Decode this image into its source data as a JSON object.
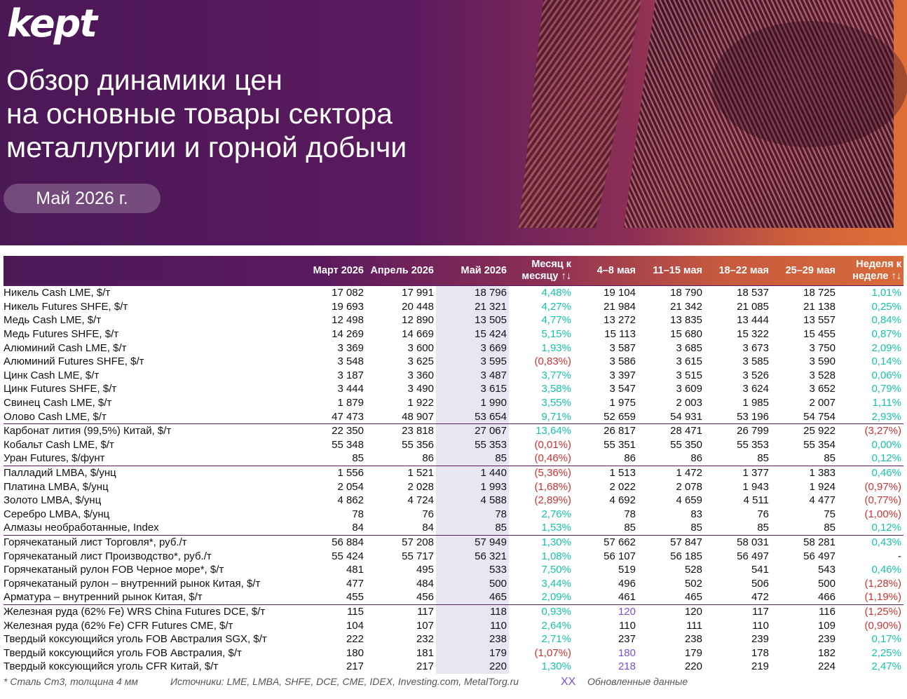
{
  "header": {
    "logo": "kept",
    "title_lines": [
      "Обзор динамики цен",
      "на основные товары сектора",
      "металлургии и горной добычи"
    ],
    "date": "Май 2026 г."
  },
  "table": {
    "columns": [
      "",
      "Март 2026",
      "Апрель 2026",
      "Май 2026",
      "Месяц к месяцу ↑↓",
      "4–8 мая",
      "11–15 мая",
      "18–22 мая",
      "25–29 мая",
      "Неделя к неделе ↑↓"
    ],
    "rows": [
      {
        "name": "Никель Cash LME, $/т",
        "mar": "17 082",
        "apr": "17 991",
        "may": "18 796",
        "mom": "4,48%",
        "w1": "19 104",
        "w2": "18 790",
        "w3": "18 537",
        "w4": "18 725",
        "wow": "1,01%",
        "group": 1
      },
      {
        "name": "Никель Futures SHFE, $/т",
        "mar": "19 693",
        "apr": "20 448",
        "may": "21 321",
        "mom": "4,27%",
        "w1": "21 984",
        "w2": "21 342",
        "w3": "21 085",
        "w4": "21 138",
        "wow": "0,25%"
      },
      {
        "name": "Медь Cash LME, $/т",
        "mar": "12 498",
        "apr": "12 890",
        "may": "13 505",
        "mom": "4,77%",
        "w1": "13 272",
        "w2": "13 835",
        "w3": "13 444",
        "w4": "13 557",
        "wow": "0,84%"
      },
      {
        "name": "Медь Futures SHFE, $/т",
        "mar": "14 269",
        "apr": "14 669",
        "may": "15 424",
        "mom": "5,15%",
        "w1": "15 113",
        "w2": "15 680",
        "w3": "15 322",
        "w4": "15 455",
        "wow": "0,87%"
      },
      {
        "name": "Алюминий Cash LME, $/т",
        "mar": "3 369",
        "apr": "3 600",
        "may": "3 669",
        "mom": "1,93%",
        "w1": "3 587",
        "w2": "3 685",
        "w3": "3 673",
        "w4": "3 750",
        "wow": "2,09%"
      },
      {
        "name": "Алюминий Futures SHFE, $/т",
        "mar": "3 548",
        "apr": "3 625",
        "may": "3 595",
        "mom": "(0,83%)",
        "w1": "3 586",
        "w2": "3 615",
        "w3": "3 585",
        "w4": "3 590",
        "wow": "0,14%"
      },
      {
        "name": "Цинк Cash LME, $/т",
        "mar": "3 187",
        "apr": "3 360",
        "may": "3 487",
        "mom": "3,77%",
        "w1": "3 397",
        "w2": "3 515",
        "w3": "3 526",
        "w4": "3 528",
        "wow": "0,06%"
      },
      {
        "name": "Цинк Futures SHFE, $/т",
        "mar": "3 444",
        "apr": "3 490",
        "may": "3 615",
        "mom": "3,58%",
        "w1": "3 547",
        "w2": "3 609",
        "w3": "3 624",
        "w4": "3 652",
        "wow": "0,79%"
      },
      {
        "name": "Свинец Cash LME, $/т",
        "mar": "1 879",
        "apr": "1 922",
        "may": "1 990",
        "mom": "3,55%",
        "w1": "1 975",
        "w2": "2 003",
        "w3": "1 985",
        "w4": "2 007",
        "wow": "1,11%"
      },
      {
        "name": "Олово Cash LME, $/т",
        "mar": "47 473",
        "apr": "48 907",
        "may": "53 654",
        "mom": "9,71%",
        "w1": "52 659",
        "w2": "54 931",
        "w3": "53 196",
        "w4": "54 754",
        "wow": "2,93%"
      },
      {
        "name": "Карбонат лития (99,5%) Китай, $/т",
        "mar": "22 350",
        "apr": "23 818",
        "may": "27 067",
        "mom": "13,64%",
        "w1": "26 817",
        "w2": "28 471",
        "w3": "26 799",
        "w4": "25 922",
        "wow": "(3,27%)",
        "group": 1
      },
      {
        "name": "Кобальт Cash LME, $/т",
        "mar": "55 348",
        "apr": "55 356",
        "may": "55 353",
        "mom": "(0,01%)",
        "w1": "55 351",
        "w2": "55 350",
        "w3": "55 353",
        "w4": "55 354",
        "wow": "0,00%"
      },
      {
        "name": "Уран Futures, $/фунт",
        "mar": "85",
        "apr": "86",
        "may": "85",
        "mom": "(0,46%)",
        "w1": "86",
        "w2": "86",
        "w3": "85",
        "w4": "85",
        "wow": "0,12%"
      },
      {
        "name": "Палладий LMBA, $/унц",
        "mar": "1 556",
        "apr": "1 521",
        "may": "1 440",
        "mom": "(5,36%)",
        "w1": "1 513",
        "w2": "1 472",
        "w3": "1 377",
        "w4": "1 383",
        "wow": "0,46%",
        "group": 1
      },
      {
        "name": "Платина LMBA, $/унц",
        "mar": "2 054",
        "apr": "2 028",
        "may": "1 993",
        "mom": "(1,68%)",
        "w1": "2 022",
        "w2": "2 078",
        "w3": "1 943",
        "w4": "1 924",
        "wow": "(0,97%)"
      },
      {
        "name": "Золото LMBA, $/унц",
        "mar": "4 862",
        "apr": "4 724",
        "may": "4 588",
        "mom": "(2,89%)",
        "w1": "4 692",
        "w2": "4 659",
        "w3": "4 511",
        "w4": "4 477",
        "wow": "(0,77%)"
      },
      {
        "name": "Серебро LMBA, $/унц",
        "mar": "78",
        "apr": "76",
        "may": "78",
        "mom": "2,76%",
        "w1": "78",
        "w2": "83",
        "w3": "76",
        "w4": "75",
        "wow": "(1,00%)"
      },
      {
        "name": "Алмазы необработанные, Index",
        "mar": "84",
        "apr": "84",
        "may": "85",
        "mom": "1,53%",
        "w1": "85",
        "w2": "85",
        "w3": "85",
        "w4": "85",
        "wow": "0,12%"
      },
      {
        "name": "Горячекатаный лист Торговля*, руб./т",
        "mar": "56 884",
        "apr": "57 208",
        "may": "57 949",
        "mom": "1,30%",
        "w1": "57 662",
        "w2": "57 847",
        "w3": "58 031",
        "w4": "58 281",
        "wow": "0,43%",
        "group": 1
      },
      {
        "name": "Горячекатаный лист Производство*, руб./т",
        "mar": "55 424",
        "apr": "55 717",
        "may": "56 321",
        "mom": "1,08%",
        "w1": "56 107",
        "w2": "56 185",
        "w3": "56 497",
        "w4": "56 497",
        "wow": "-"
      },
      {
        "name": "Горячекатаный рулон FOB Черное море*, $/т",
        "mar": "481",
        "apr": "495",
        "may": "533",
        "mom": "7,50%",
        "w1": "519",
        "w2": "528",
        "w3": "541",
        "w4": "543",
        "wow": "0,46%"
      },
      {
        "name": "Горячекатаный рулон – внутренний рынок Китая, $/т",
        "mar": "477",
        "apr": "484",
        "may": "500",
        "mom": "3,44%",
        "w1": "496",
        "w2": "502",
        "w3": "506",
        "w4": "500",
        "wow": "(1,28%)"
      },
      {
        "name": "Арматура – внутренний рынок Китая, $/т",
        "mar": "455",
        "apr": "456",
        "may": "465",
        "mom": "2,09%",
        "w1": "461",
        "w2": "465",
        "w3": "472",
        "w4": "466",
        "wow": "(1,19%)"
      },
      {
        "name": "Железная руда (62% Fe) WRS China Futures DCE, $/т",
        "mar": "115",
        "apr": "117",
        "may": "118",
        "mom": "0,93%",
        "w1": "120",
        "w2": "120",
        "w3": "117",
        "w4": "116",
        "wow": "(1,25%)",
        "group": 1,
        "upd_w1": 1
      },
      {
        "name": "Железная руда (62% Fe) CFR Futures CME, $/т",
        "mar": "104",
        "apr": "107",
        "may": "110",
        "mom": "2,64%",
        "w1": "110",
        "w2": "111",
        "w3": "110",
        "w4": "109",
        "wow": "(0,90%)"
      },
      {
        "name": "Твердый коксующийся уголь FOB Австралия SGX, $/т",
        "mar": "222",
        "apr": "232",
        "may": "238",
        "mom": "2,71%",
        "w1": "237",
        "w2": "238",
        "w3": "239",
        "w4": "239",
        "wow": "0,17%"
      },
      {
        "name": "Твердый коксующийся уголь FOB Австралия, $/т",
        "mar": "180",
        "apr": "181",
        "may": "179",
        "mom": "(1,07%)",
        "w1": "180",
        "w2": "179",
        "w3": "178",
        "w4": "182",
        "wow": "2,25%",
        "upd_w1": 1
      },
      {
        "name": "Твердый коксующийся уголь CFR Китай, $/т",
        "mar": "217",
        "apr": "217",
        "may": "220",
        "mom": "1,30%",
        "w1": "218",
        "w2": "220",
        "w3": "219",
        "w4": "224",
        "wow": "2,47%",
        "upd_w1": 1
      }
    ]
  },
  "footer": {
    "note": "* Сталь Ст3, толщина 4 мм",
    "sources": "Источники: LME, LMBA, SHFE, DCE, CME, IDEX, Investing.com, MetalTorg.ru",
    "legend_marker": "XX",
    "legend_label": "Обновленные данные"
  },
  "colors": {
    "positive": "#16c3a9",
    "negative": "#cc3333",
    "updated": "#7a4fd6",
    "brand": "#5a1a5e"
  }
}
